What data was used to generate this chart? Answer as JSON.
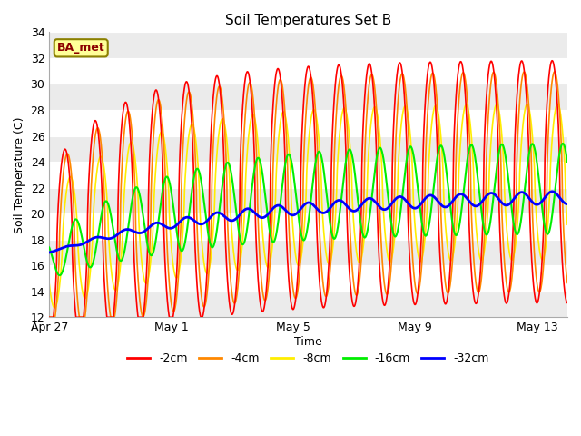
{
  "title": "Soil Temperatures Set B",
  "xlabel": "Time",
  "ylabel": "Soil Temperature (C)",
  "ylim": [
    12,
    34
  ],
  "xlim_days": [
    0,
    17
  ],
  "figure_bg": "#ffffff",
  "plot_bg": "#ffffff",
  "grid_color": "#d8d8d8",
  "colors": {
    "-2cm": "#ff0000",
    "-4cm": "#ff8800",
    "-8cm": "#ffee00",
    "-16cm": "#00ee00",
    "-32cm": "#0000ff"
  },
  "annotation_text": "BA_met",
  "annotation_bg": "#ffff99",
  "annotation_border": "#8B8000",
  "x_tick_labels": [
    "Apr 27",
    "May 1",
    "May 5",
    "May 9",
    "May 13"
  ],
  "x_tick_positions": [
    0,
    4,
    8,
    12,
    16
  ],
  "yticks": [
    12,
    14,
    16,
    18,
    20,
    22,
    24,
    26,
    28,
    30,
    32,
    34
  ]
}
